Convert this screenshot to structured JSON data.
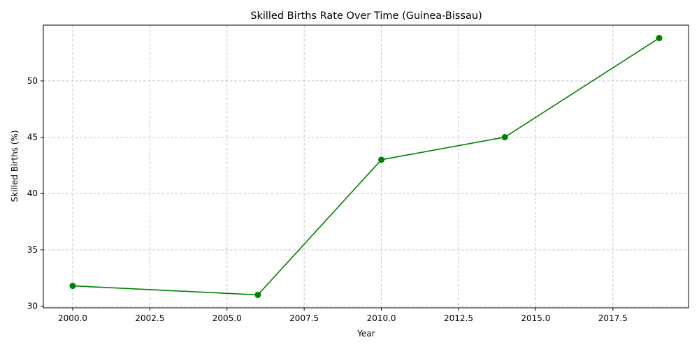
{
  "chart_data": {
    "type": "line",
    "title": "Skilled Births Rate Over Time (Guinea-Bissau)",
    "xlabel": "Year",
    "ylabel": "Skilled Births (%)",
    "xlim": [
      1999.05,
      2019.95
    ],
    "ylim": [
      29.85,
      54.95
    ],
    "x_ticks": [
      2000,
      2002.5,
      2005,
      2007.5,
      2010,
      2012.5,
      2015,
      2017.5
    ],
    "x_tick_labels": [
      "2000.0",
      "2002.5",
      "2005.0",
      "2007.5",
      "2010.0",
      "2012.5",
      "2015.0",
      "2017.5"
    ],
    "y_ticks": [
      30,
      35,
      40,
      45,
      50
    ],
    "y_tick_labels": [
      "30",
      "35",
      "40",
      "45",
      "50"
    ],
    "grid": true,
    "grid_style": "dashed",
    "legend": "none",
    "series": [
      {
        "color": "#008000",
        "marker": "circle",
        "x": [
          2000,
          2006,
          2010,
          2014,
          2019
        ],
        "y": [
          31.8,
          31.0,
          43.0,
          45.0,
          53.8
        ]
      }
    ]
  }
}
